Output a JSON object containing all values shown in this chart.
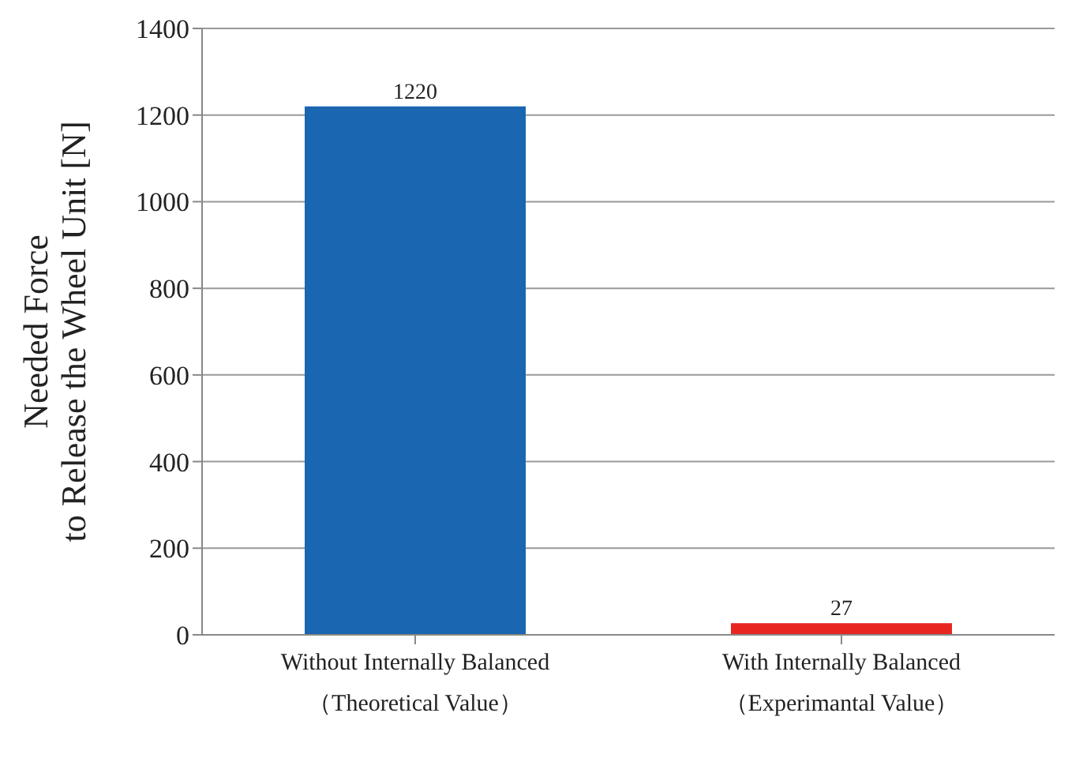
{
  "chart_data": {
    "type": "bar",
    "ylabel": "Needed Force\nto Release the Wheel Unit [N]",
    "categories": [
      "Without Internally Balanced\n（Theoretical Value）",
      "With Internally Balanced\n（Experimantal Value）"
    ],
    "values": [
      1220,
      27
    ],
    "colors": [
      "#1a66b0",
      "#e8251f"
    ],
    "ylim": [
      0,
      1400
    ],
    "yticks": [
      0,
      200,
      400,
      600,
      800,
      1000,
      1200,
      1400
    ],
    "grid": "y",
    "data_labels": true
  }
}
